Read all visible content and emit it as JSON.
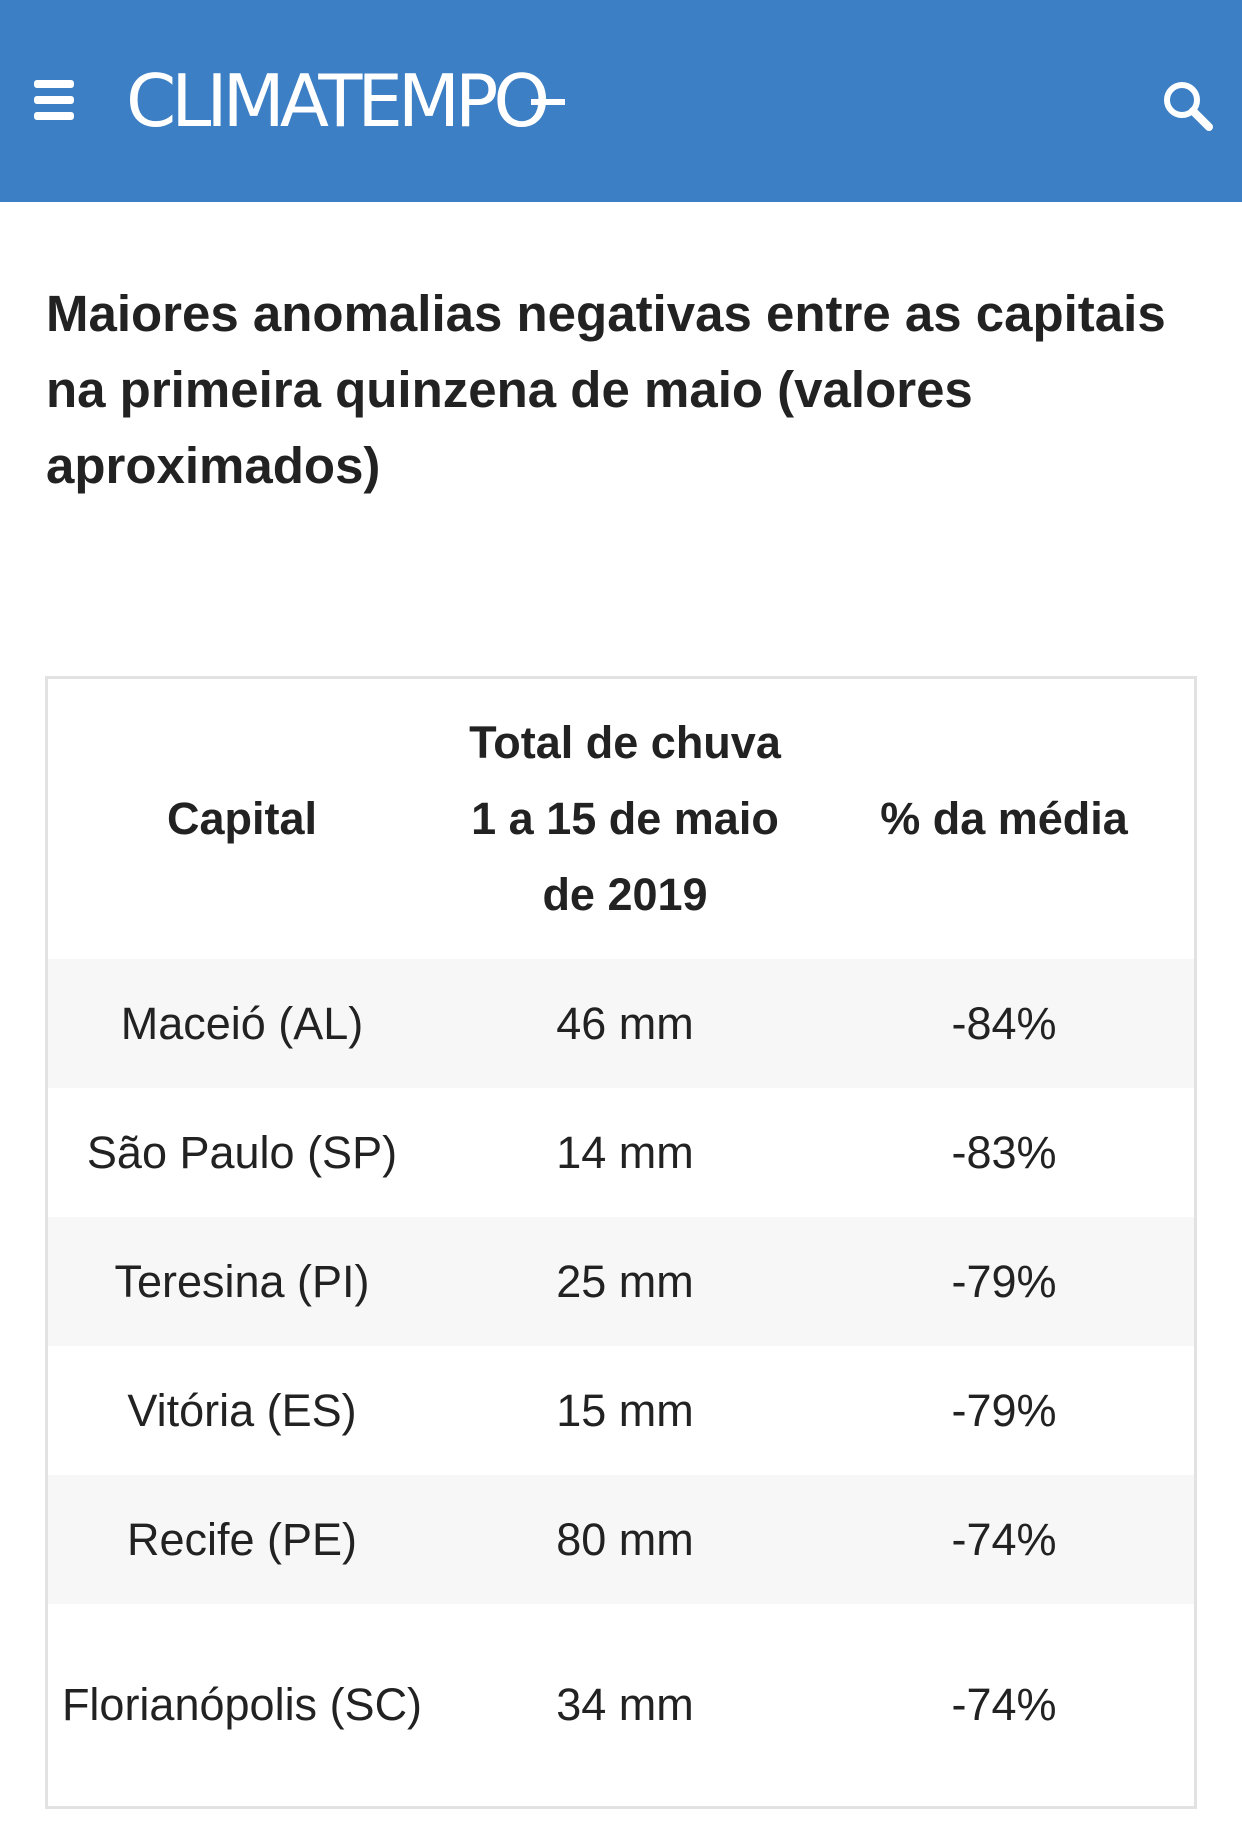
{
  "header": {
    "logo_text": "CLIMATEMPO",
    "background_color": "#3c7fc4",
    "menu_icon": "hamburger-menu-icon",
    "search_icon": "search-icon"
  },
  "article": {
    "title": "Maiores anomalias negativas entre as capitais na primeira quinzena de maio (valores aproximados)"
  },
  "table": {
    "headers": {
      "capital": "Capital",
      "total_line1": "Total de chuva",
      "total_line2": "1 a 15 de maio de 2019",
      "percent": "% da média"
    },
    "rows": [
      {
        "capital": "Maceió (AL)",
        "total": "46 mm",
        "percent": "-84%"
      },
      {
        "capital": "São Paulo (SP)",
        "total": "14 mm",
        "percent": "-83%"
      },
      {
        "capital": "Teresina (PI)",
        "total": "25 mm",
        "percent": "-79%"
      },
      {
        "capital": "Vitória (ES)",
        "total": "15 mm",
        "percent": "-79%"
      },
      {
        "capital": "Recife (PE)",
        "total": "80 mm",
        "percent": "-74%"
      },
      {
        "capital": "Florianópolis (SC)",
        "total": "34 mm",
        "percent": "-74%"
      }
    ]
  }
}
